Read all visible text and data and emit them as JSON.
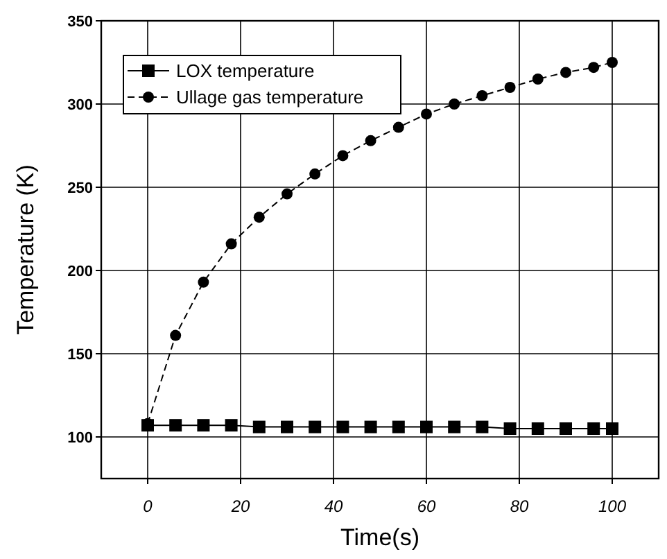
{
  "chart_data": {
    "type": "line",
    "xlabel": "Time(s)",
    "ylabel": "Temperature (K)",
    "x": [
      0,
      6,
      12,
      18,
      24,
      30,
      36,
      42,
      48,
      54,
      60,
      66,
      72,
      78,
      84,
      90,
      96,
      100
    ],
    "series": [
      {
        "name": "LOX temperature",
        "color": "#000000",
        "marker": "square",
        "line_style": "solid",
        "values": [
          107,
          107,
          107,
          107,
          106,
          106,
          106,
          106,
          106,
          106,
          106,
          106,
          106,
          105,
          105,
          105,
          105,
          105
        ]
      },
      {
        "name": "Ullage gas temperature",
        "color": "#000000",
        "marker": "circle",
        "line_style": "dashed",
        "values": [
          108,
          161,
          193,
          216,
          232,
          246,
          258,
          269,
          278,
          286,
          294,
          300,
          305,
          310,
          315,
          319,
          322,
          325
        ]
      }
    ],
    "xlim": [
      -10,
      110
    ],
    "xticks": [
      0,
      20,
      40,
      60,
      80,
      100
    ],
    "ylim": [
      75,
      350
    ],
    "yticks": [
      100,
      150,
      200,
      250,
      300,
      350
    ],
    "grid": true,
    "legend": "top left"
  }
}
